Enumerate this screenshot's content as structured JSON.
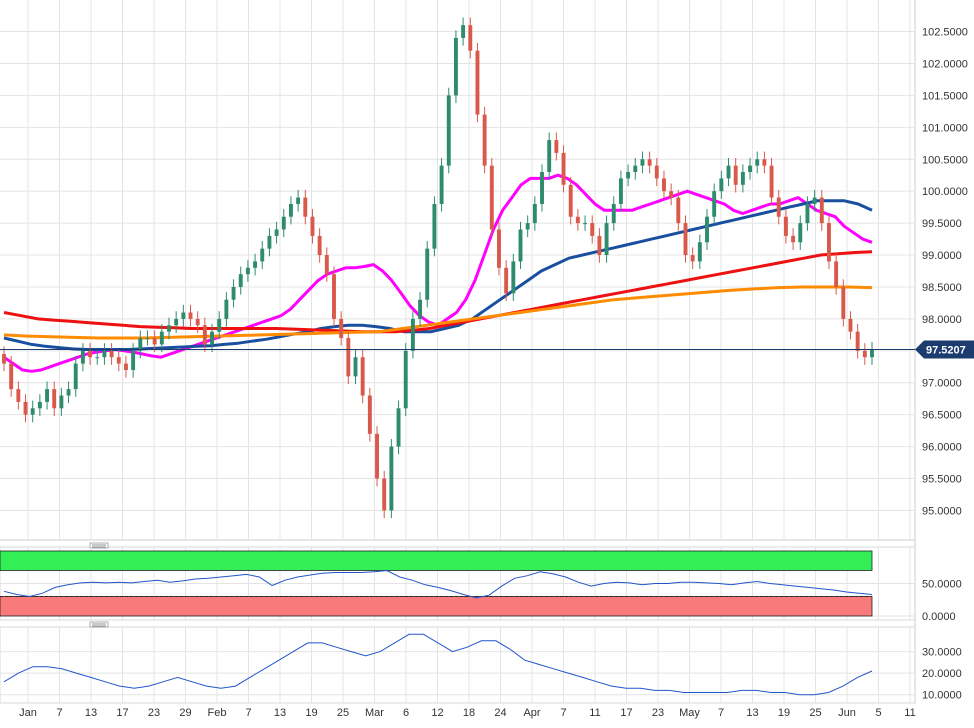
{
  "chart_data": [
    {
      "type": "candlestick",
      "panel": "price",
      "ylim": [
        94.6,
        102.9
      ],
      "yticks": [
        95.0,
        95.5,
        96.0,
        96.5,
        97.0,
        97.5,
        98.0,
        98.5,
        99.0,
        99.5,
        100.0,
        100.5,
        101.0,
        101.5,
        102.0,
        102.5
      ],
      "ytick_labels": [
        "95.0000",
        "95.5000",
        "96.0000",
        "96.5000",
        "97.0000",
        "97.5000",
        "98.0000",
        "98.5000",
        "99.0000",
        "99.5000",
        "100.0000",
        "100.5000",
        "101.0000",
        "101.5000",
        "102.0000",
        "102.5000"
      ],
      "last_price": 97.5207,
      "last_price_label": "97.5207",
      "close": [
        97.3,
        96.9,
        96.7,
        96.5,
        96.6,
        96.7,
        96.9,
        96.6,
        96.8,
        96.9,
        97.3,
        97.5,
        97.4,
        97.4,
        97.5,
        97.4,
        97.3,
        97.2,
        97.5,
        97.7,
        97.7,
        97.6,
        97.8,
        97.9,
        98.0,
        98.1,
        98.0,
        97.9,
        97.6,
        97.8,
        98.0,
        98.3,
        98.5,
        98.7,
        98.8,
        98.9,
        99.1,
        99.3,
        99.4,
        99.6,
        99.8,
        99.9,
        99.6,
        99.3,
        99.0,
        98.7,
        98.0,
        97.7,
        97.1,
        97.4,
        96.8,
        96.2,
        95.5,
        95.0,
        96.0,
        96.6,
        97.5,
        98.0,
        98.3,
        99.1,
        99.8,
        100.4,
        101.5,
        102.4,
        102.6,
        102.2,
        101.2,
        100.4,
        99.4,
        98.8,
        98.4,
        98.9,
        99.4,
        99.5,
        99.8,
        100.3,
        100.8,
        100.6,
        100.1,
        99.6,
        99.5,
        99.5,
        99.3,
        99.0,
        99.5,
        99.8,
        100.2,
        100.3,
        100.4,
        100.5,
        100.4,
        100.2,
        100.0,
        99.9,
        99.5,
        99.0,
        98.9,
        99.2,
        99.6,
        100.0,
        100.2,
        100.4,
        100.1,
        100.3,
        100.4,
        100.5,
        100.4,
        99.9,
        99.6,
        99.3,
        99.2,
        99.5,
        99.8,
        99.9,
        99.5,
        98.9,
        98.5,
        98.0,
        97.8,
        97.5,
        97.4,
        97.52
      ],
      "price_axis": "right",
      "x_tick_labels": [
        "Jan",
        "7",
        "13",
        "17",
        "23",
        "29",
        "Feb",
        "7",
        "13",
        "19",
        "25",
        "Mar",
        "6",
        "12",
        "18",
        "24",
        "Apr",
        "7",
        "11",
        "17",
        "23",
        "May",
        "7",
        "13",
        "19",
        "25",
        "Jun",
        "5",
        "11"
      ],
      "moving_averages": [
        {
          "color": "#ff00ff",
          "values": [
            97.4,
            97.3,
            97.2,
            97.18,
            97.2,
            97.25,
            97.3,
            97.35,
            97.4,
            97.45,
            97.48,
            97.5,
            97.52,
            97.5,
            97.48,
            97.45,
            97.42,
            97.4,
            97.45,
            97.5,
            97.55,
            97.6,
            97.65,
            97.7,
            97.75,
            97.8,
            97.85,
            97.9,
            97.95,
            98.0,
            98.05,
            98.15,
            98.3,
            98.45,
            98.6,
            98.7,
            98.75,
            98.8,
            98.8,
            98.82,
            98.85,
            98.75,
            98.6,
            98.4,
            98.2,
            98.05,
            97.95,
            97.9,
            98.0,
            98.1,
            98.3,
            98.6,
            99.0,
            99.4,
            99.7,
            99.9,
            100.1,
            100.2,
            100.2,
            100.2,
            100.25,
            100.2,
            100.1,
            99.95,
            99.8,
            99.7,
            99.7,
            99.7,
            99.7,
            99.75,
            99.8,
            99.85,
            99.9,
            99.95,
            100.0,
            99.95,
            99.9,
            99.85,
            99.8,
            99.7,
            99.65,
            99.7,
            99.75,
            99.8,
            99.8,
            99.85,
            99.9,
            99.8,
            99.7,
            99.65,
            99.6,
            99.45,
            99.35,
            99.25,
            99.2
          ]
        },
        {
          "color": "#1a4fa0",
          "values": [
            97.7,
            97.65,
            97.6,
            97.57,
            97.55,
            97.53,
            97.52,
            97.52,
            97.52,
            97.52,
            97.53,
            97.54,
            97.55,
            97.56,
            97.57,
            97.58,
            97.6,
            97.62,
            97.65,
            97.68,
            97.72,
            97.76,
            97.8,
            97.85,
            97.88,
            97.9,
            97.9,
            97.88,
            97.85,
            97.8,
            97.8,
            97.8,
            97.85,
            97.9,
            98.0,
            98.15,
            98.3,
            98.45,
            98.6,
            98.75,
            98.85,
            98.95,
            99.0,
            99.05,
            99.1,
            99.15,
            99.2,
            99.25,
            99.3,
            99.35,
            99.4,
            99.45,
            99.5,
            99.55,
            99.6,
            99.65,
            99.7,
            99.75,
            99.8,
            99.85,
            99.85,
            99.85,
            99.8,
            99.7
          ]
        },
        {
          "color": "#ee1111",
          "values": [
            98.1,
            98.05,
            98.0,
            97.98,
            97.96,
            97.94,
            97.92,
            97.9,
            97.88,
            97.87,
            97.86,
            97.85,
            97.85,
            97.85,
            97.85,
            97.85,
            97.85,
            97.84,
            97.83,
            97.82,
            97.81,
            97.8,
            97.8,
            97.8,
            97.82,
            97.85,
            97.9,
            97.95,
            98.0,
            98.05,
            98.1,
            98.15,
            98.2,
            98.25,
            98.3,
            98.35,
            98.4,
            98.45,
            98.5,
            98.55,
            98.6,
            98.65,
            98.7,
            98.75,
            98.8,
            98.85,
            98.9,
            98.95,
            99.0,
            99.02,
            99.04,
            99.05
          ]
        },
        {
          "color": "#ff8c00",
          "values": [
            97.75,
            97.73,
            97.72,
            97.71,
            97.7,
            97.7,
            97.7,
            97.71,
            97.72,
            97.73,
            97.74,
            97.75,
            97.76,
            97.77,
            97.78,
            97.79,
            97.8,
            97.85,
            97.9,
            97.95,
            98.0,
            98.05,
            98.1,
            98.15,
            98.2,
            98.25,
            98.3,
            98.33,
            98.36,
            98.39,
            98.42,
            98.45,
            98.47,
            98.49,
            98.5,
            98.5,
            98.5,
            98.49
          ]
        }
      ],
      "colors": {
        "up": "#2e8b6e",
        "down": "#d9594b"
      }
    },
    {
      "type": "line",
      "panel": "oscillator",
      "ylim": [
        0,
        100
      ],
      "yticks": [
        0,
        50
      ],
      "ytick_labels": [
        "0.0000",
        "50.0000"
      ],
      "bands": [
        {
          "from": 70,
          "to": 100,
          "color": "#33ee55"
        },
        {
          "from": 0,
          "to": 30,
          "color": "#f87a7a"
        }
      ],
      "values": [
        38,
        33,
        30,
        35,
        44,
        48,
        51,
        52,
        51,
        52,
        51,
        53,
        55,
        52,
        54,
        57,
        58,
        60,
        62,
        64,
        60,
        47,
        55,
        60,
        63,
        66,
        67,
        67,
        67,
        68,
        70,
        60,
        55,
        48,
        44,
        39,
        33,
        28,
        32,
        46,
        58,
        62,
        68,
        65,
        60,
        52,
        46,
        50,
        52,
        51,
        48,
        50,
        50,
        52,
        52,
        51,
        50,
        48,
        51,
        53,
        50,
        48,
        46,
        44,
        42,
        40,
        37,
        35,
        33
      ]
    },
    {
      "type": "line",
      "panel": "indicator",
      "ylim": [
        8,
        40
      ],
      "yticks": [
        10,
        20,
        30
      ],
      "ytick_labels": [
        "10.0000",
        "20.0000",
        "30.0000"
      ],
      "values": [
        16,
        20,
        23,
        23,
        22,
        20,
        18,
        16,
        14,
        13,
        14,
        16,
        18,
        16,
        14,
        13,
        14,
        18,
        22,
        26,
        30,
        34,
        34,
        32,
        30,
        28,
        30,
        34,
        38,
        38,
        34,
        30,
        32,
        35,
        35,
        31,
        26,
        24,
        22,
        20,
        18,
        16,
        14,
        13,
        13,
        12,
        12,
        11,
        11,
        11,
        11,
        12,
        12,
        11,
        11,
        10,
        10,
        11,
        14,
        18,
        21
      ]
    }
  ]
}
